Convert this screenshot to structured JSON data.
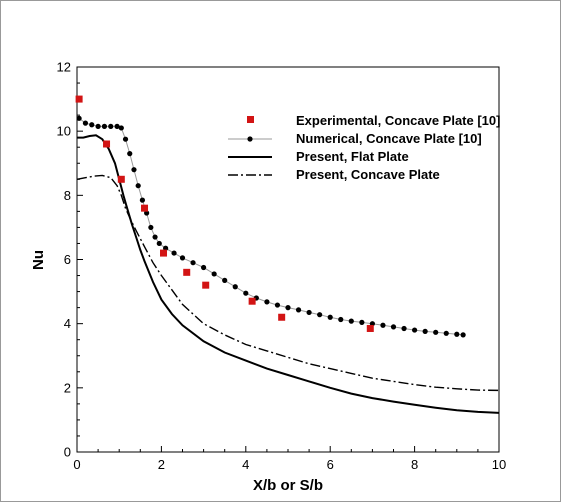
{
  "chart_data": {
    "type": "line",
    "xlabel": "X/b or S/b",
    "ylabel": "Nu",
    "xlim": [
      0,
      10
    ],
    "ylim": [
      0,
      12
    ],
    "xticks": [
      "0",
      "2",
      "4",
      "6",
      "8",
      "10"
    ],
    "yticks": [
      "0",
      "2",
      "4",
      "6",
      "8",
      "10",
      "12"
    ],
    "legend_position": "top-right",
    "grid": false,
    "colors": {
      "experimental": "#d21414",
      "numerical_line": "#9a9a9a",
      "numerical_marker": "#000000",
      "present": "#000000"
    },
    "series": [
      {
        "name": "Experimental, Concave Plate [10]",
        "style": "square-markers",
        "x": [
          0.05,
          0.7,
          1.05,
          1.6,
          2.05,
          2.6,
          3.05,
          4.15,
          4.85,
          6.95
        ],
        "y": [
          11.0,
          9.6,
          8.5,
          7.6,
          6.2,
          5.6,
          5.2,
          4.7,
          4.2,
          3.85
        ]
      },
      {
        "name": "Numerical, Concave Plate [10]",
        "style": "thin-line-dot-markers",
        "x": [
          0.05,
          0.2,
          0.35,
          0.5,
          0.65,
          0.8,
          0.95,
          1.05,
          1.15,
          1.25,
          1.35,
          1.45,
          1.55,
          1.65,
          1.75,
          1.85,
          1.95,
          2.1,
          2.3,
          2.5,
          2.75,
          3.0,
          3.25,
          3.5,
          3.75,
          4.0,
          4.25,
          4.5,
          4.75,
          5.0,
          5.25,
          5.5,
          5.75,
          6.0,
          6.25,
          6.5,
          6.75,
          7.0,
          7.25,
          7.5,
          7.75,
          8.0,
          8.25,
          8.5,
          8.75,
          9.0,
          9.15
        ],
        "y": [
          10.4,
          10.25,
          10.2,
          10.15,
          10.15,
          10.15,
          10.15,
          10.1,
          9.75,
          9.3,
          8.8,
          8.3,
          7.85,
          7.45,
          7.0,
          6.7,
          6.5,
          6.35,
          6.2,
          6.05,
          5.9,
          5.75,
          5.55,
          5.35,
          5.15,
          4.95,
          4.8,
          4.68,
          4.58,
          4.5,
          4.43,
          4.35,
          4.28,
          4.2,
          4.13,
          4.08,
          4.04,
          4.0,
          3.95,
          3.9,
          3.85,
          3.8,
          3.76,
          3.73,
          3.7,
          3.67,
          3.65
        ]
      },
      {
        "name": "Present, Flat Plate",
        "style": "solid-line",
        "x": [
          0.0,
          0.15,
          0.3,
          0.45,
          0.6,
          0.75,
          0.9,
          1.0,
          1.1,
          1.2,
          1.3,
          1.4,
          1.5,
          1.6,
          1.8,
          2.0,
          2.25,
          2.5,
          3.0,
          3.5,
          4.0,
          4.5,
          5.0,
          5.5,
          6.0,
          6.5,
          7.0,
          7.5,
          8.0,
          8.5,
          9.0,
          9.5,
          10.0
        ],
        "y": [
          9.8,
          9.8,
          9.85,
          9.87,
          9.75,
          9.45,
          9.0,
          8.5,
          8.0,
          7.55,
          7.1,
          6.7,
          6.3,
          5.95,
          5.3,
          4.75,
          4.3,
          3.95,
          3.45,
          3.1,
          2.85,
          2.6,
          2.4,
          2.2,
          2.0,
          1.82,
          1.68,
          1.57,
          1.47,
          1.38,
          1.3,
          1.25,
          1.22
        ]
      },
      {
        "name": "Present, Concave Plate",
        "style": "dash-dot-line",
        "x": [
          0.0,
          0.2,
          0.4,
          0.6,
          0.8,
          0.95,
          1.05,
          1.15,
          1.25,
          1.4,
          1.6,
          1.8,
          2.0,
          2.5,
          3.0,
          3.5,
          4.0,
          4.5,
          5.0,
          5.5,
          6.0,
          6.5,
          7.0,
          7.5,
          8.0,
          8.5,
          9.0,
          9.5,
          10.0
        ],
        "y": [
          8.5,
          8.55,
          8.6,
          8.62,
          8.55,
          8.3,
          8.0,
          7.6,
          7.3,
          6.9,
          6.4,
          5.9,
          5.5,
          4.6,
          4.0,
          3.65,
          3.35,
          3.15,
          2.95,
          2.75,
          2.6,
          2.45,
          2.3,
          2.2,
          2.1,
          2.02,
          1.97,
          1.93,
          1.92
        ]
      }
    ]
  }
}
